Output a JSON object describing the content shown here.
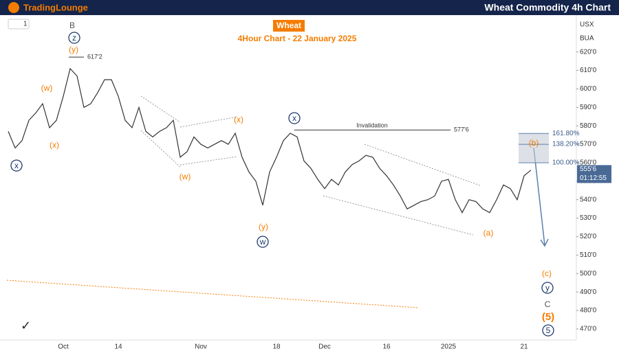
{
  "header": {
    "brand": "TradingLounge",
    "title": "Wheat Commodity 4h Chart"
  },
  "chart_data": {
    "type": "line",
    "title": "Wheat",
    "subtitle": "4Hour Chart - 22 January 2025",
    "categories": [
      null,
      null,
      null,
      null,
      null,
      null,
      null,
      null,
      "Oct",
      null,
      null,
      null,
      null,
      null,
      null,
      null,
      "14",
      null,
      null,
      null,
      null,
      null,
      null,
      null,
      null,
      null,
      null,
      null,
      "Nov",
      null,
      null,
      null,
      null,
      null,
      null,
      null,
      null,
      null,
      null,
      "18",
      null,
      null,
      null,
      null,
      null,
      null,
      "Dec",
      null,
      null,
      null,
      null,
      null,
      null,
      null,
      null,
      "16",
      null,
      null,
      null,
      null,
      null,
      null,
      null,
      null,
      "2025",
      null,
      null,
      null,
      null,
      null,
      null,
      null,
      null,
      null,
      null,
      "21",
      null
    ],
    "values": [
      577,
      568,
      572,
      583,
      587,
      592,
      579,
      583,
      596,
      611,
      607,
      590,
      592,
      598,
      605,
      605,
      596,
      583,
      579,
      590,
      577,
      574,
      577,
      579,
      583,
      563,
      566,
      574,
      570,
      568,
      570,
      572,
      570,
      576,
      563,
      555,
      550,
      537,
      555,
      563,
      572,
      576,
      574,
      561,
      557,
      551,
      546,
      551,
      548,
      555,
      559,
      561,
      564,
      563,
      557,
      553,
      548,
      542,
      535,
      537,
      539,
      540,
      542,
      550,
      551,
      540,
      533,
      540,
      539,
      535,
      533,
      540,
      548,
      546,
      540,
      553,
      556
    ],
    "color": "#333333",
    "ylim": [
      464,
      637
    ],
    "yticks": [
      {
        "value": 470,
        "label": "470'0"
      },
      {
        "value": 480,
        "label": "480'0"
      },
      {
        "value": 490,
        "label": "490'0"
      },
      {
        "value": 500,
        "label": "500'0"
      },
      {
        "value": 510,
        "label": "510'0"
      },
      {
        "value": 520,
        "label": "520'0"
      },
      {
        "value": 530,
        "label": "530'0"
      },
      {
        "value": 540,
        "label": "540'0"
      },
      {
        "value": 550,
        "label": "550'0"
      },
      {
        "value": 560,
        "label": "560'0"
      },
      {
        "value": 570,
        "label": "570'0"
      },
      {
        "value": 580,
        "label": "580'0"
      },
      {
        "value": 590,
        "label": "590'0"
      },
      {
        "value": 600,
        "label": "600'0"
      },
      {
        "value": 610,
        "label": "610'0"
      },
      {
        "value": 620,
        "label": "620'0"
      }
    ],
    "price_levels": [
      {
        "name": "Invalidation",
        "value": 577.75,
        "label": "577'6"
      },
      {
        "value": 617.25,
        "label": "617'2"
      }
    ],
    "fib_levels": [
      {
        "value": 575.9,
        "label": "161.80%"
      },
      {
        "value": 570,
        "label": "138.20%"
      },
      {
        "value": 560,
        "label": "100.00%"
      }
    ],
    "last_price": {
      "value": 555.75,
      "label": "555'6"
    },
    "countdown": "01:12:55",
    "currency": "USX",
    "unit": "BUA",
    "interval": "1",
    "annotations": [
      "B",
      "z",
      "(y)",
      "(w)",
      "(x)",
      "x",
      "(w)",
      "(x)",
      "(y)",
      "w",
      "x",
      "(b)",
      "(a)",
      "(c)",
      "y",
      "C",
      "(5)",
      "5"
    ]
  }
}
